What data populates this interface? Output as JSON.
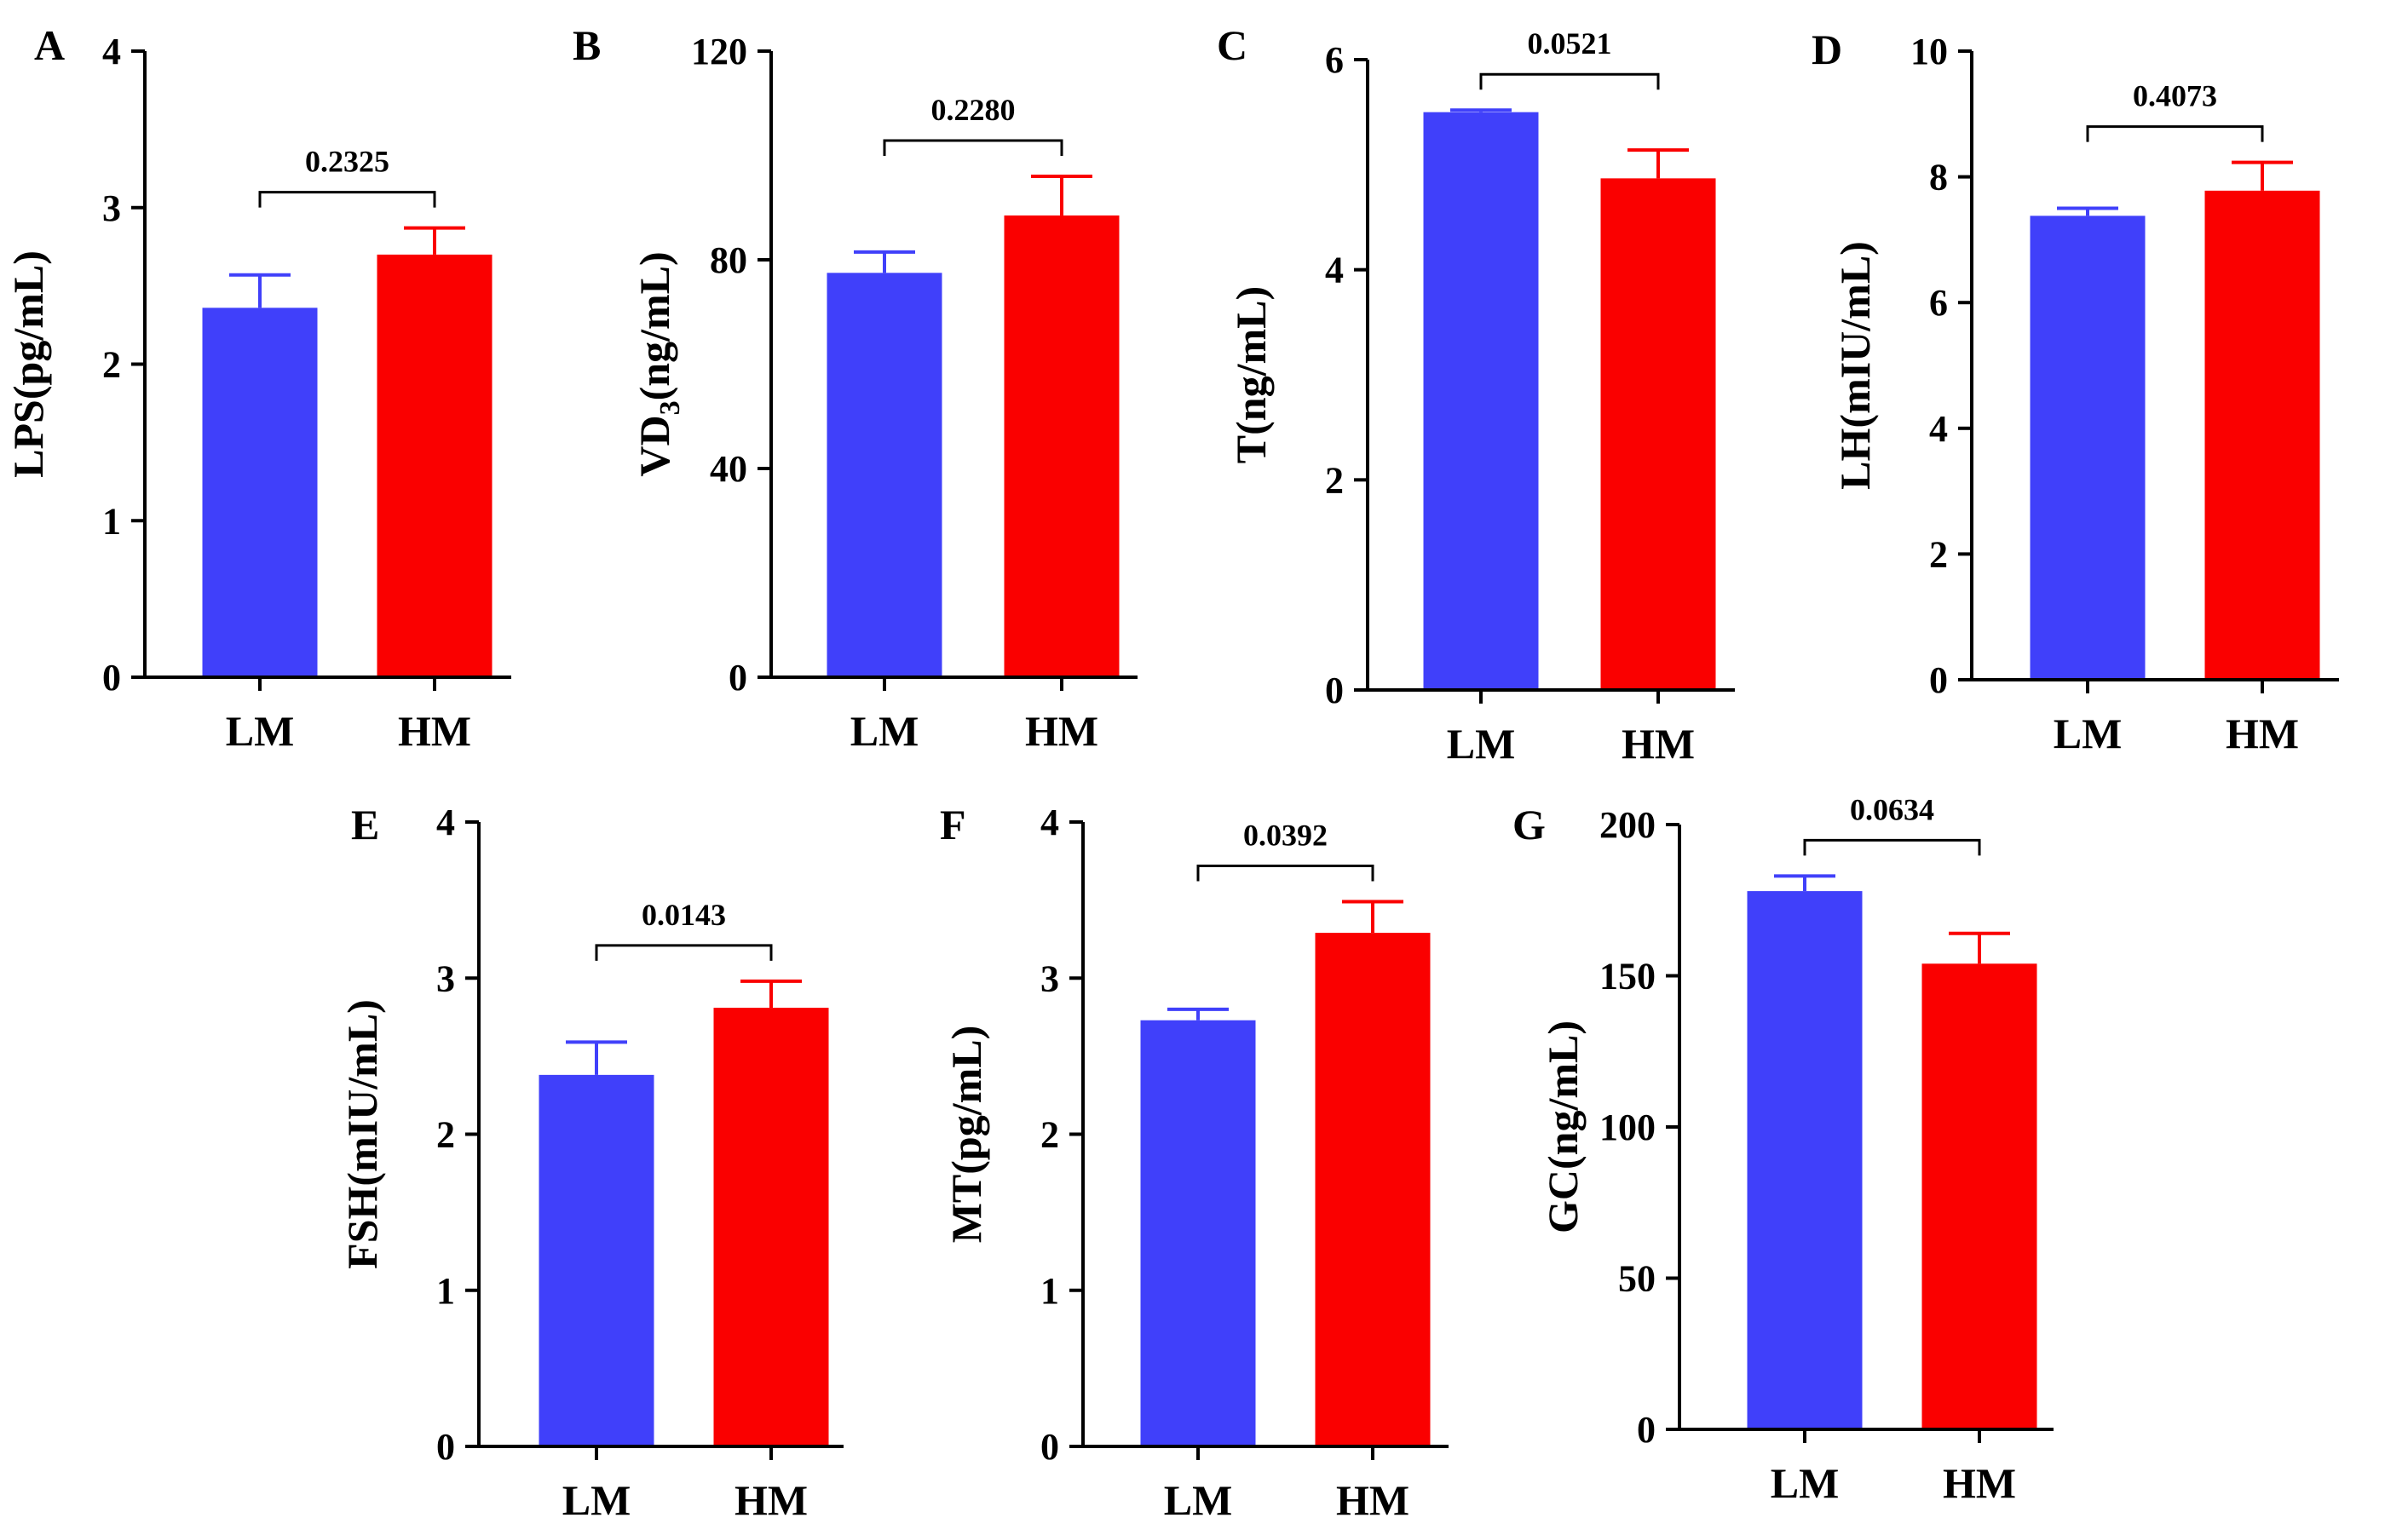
{
  "chart_data": [
    {
      "panel": "A",
      "type": "bar",
      "categories": [
        "LM",
        "HM"
      ],
      "values": [
        2.36,
        2.7
      ],
      "errors": [
        0.21,
        0.17
      ],
      "ylabel": "LPS(pg/mL)",
      "ylim": [
        0,
        4
      ],
      "yticks": [
        0,
        1,
        2,
        3,
        4
      ],
      "p_value": "0.2325",
      "colors": [
        "#4040fa",
        "#fa0000"
      ]
    },
    {
      "panel": "B",
      "type": "bar",
      "categories": [
        "LM",
        "HM"
      ],
      "values": [
        77.5,
        88.5
      ],
      "errors": [
        4.0,
        7.5
      ],
      "ylabel_main": "VD",
      "ylabel_sub": "3",
      "ylabel_rest": "(ng/mL)",
      "ylim": [
        0,
        120
      ],
      "yticks": [
        0,
        40,
        80,
        120
      ],
      "p_value": "0.2280",
      "colors": [
        "#4040fa",
        "#fa0000"
      ]
    },
    {
      "panel": "C",
      "type": "bar",
      "categories": [
        "LM",
        "HM"
      ],
      "values": [
        5.5,
        4.87
      ],
      "errors": [
        0.02,
        0.27
      ],
      "ylabel": "T(ng/mL)",
      "ylim": [
        0,
        6
      ],
      "yticks": [
        0,
        2,
        4,
        6
      ],
      "p_value": "0.0521",
      "colors": [
        "#4040fa",
        "#fa0000"
      ]
    },
    {
      "panel": "D",
      "type": "bar",
      "categories": [
        "LM",
        "HM"
      ],
      "values": [
        7.38,
        7.78
      ],
      "errors": [
        0.12,
        0.45
      ],
      "ylabel": "LH(mIU/mL)",
      "ylim": [
        0,
        10
      ],
      "yticks": [
        0,
        2,
        4,
        6,
        8,
        10
      ],
      "p_value": "0.4073",
      "colors": [
        "#4040fa",
        "#fa0000"
      ]
    },
    {
      "panel": "E",
      "type": "bar",
      "categories": [
        "LM",
        "HM"
      ],
      "values": [
        2.38,
        2.81
      ],
      "errors": [
        0.21,
        0.17
      ],
      "ylabel": "FSH(mIU/mL)",
      "ylim": [
        0,
        4
      ],
      "yticks": [
        0,
        1,
        2,
        3,
        4
      ],
      "p_value": "0.0143",
      "colors": [
        "#4040fa",
        "#fa0000"
      ]
    },
    {
      "panel": "F",
      "type": "bar",
      "categories": [
        "LM",
        "HM"
      ],
      "values": [
        2.73,
        3.29
      ],
      "errors": [
        0.07,
        0.2
      ],
      "ylabel": "MT(pg/mL)",
      "ylim": [
        0,
        4
      ],
      "yticks": [
        0,
        1,
        2,
        3,
        4
      ],
      "p_value": "0.0392",
      "colors": [
        "#4040fa",
        "#fa0000"
      ]
    },
    {
      "panel": "G",
      "type": "bar",
      "categories": [
        "LM",
        "HM"
      ],
      "values": [
        178,
        154
      ],
      "errors": [
        5,
        10
      ],
      "ylabel": "GC(ng/mL)",
      "ylim": [
        0,
        200
      ],
      "yticks": [
        0,
        50,
        100,
        150,
        200
      ],
      "p_value": "0.0634",
      "colors": [
        "#4040fa",
        "#fa0000"
      ]
    }
  ]
}
